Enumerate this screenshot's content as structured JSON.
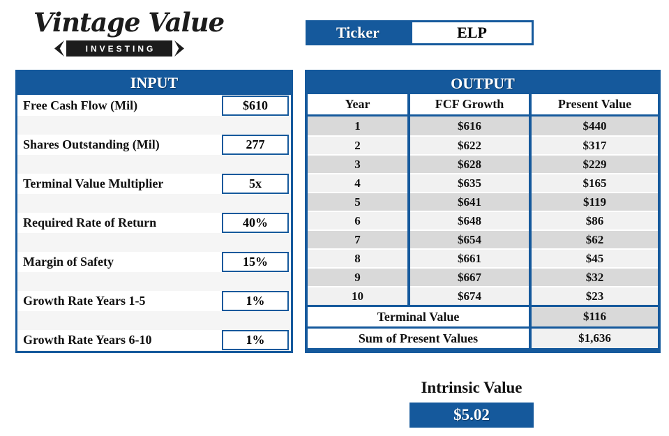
{
  "brand": {
    "name": "Vintage Value",
    "tagline": "INVESTING"
  },
  "ticker": {
    "label": "Ticker",
    "value": "ELP"
  },
  "input": {
    "title": "INPUT",
    "fields": [
      {
        "label": "Free Cash Flow (Mil)",
        "value": "$610"
      },
      {
        "label": "Shares Outstanding (Mil)",
        "value": "277"
      },
      {
        "label": "Terminal Value Multiplier",
        "value": "5x"
      },
      {
        "label": "Required Rate of Return",
        "value": "40%"
      },
      {
        "label": "Margin of Safety",
        "value": "15%"
      },
      {
        "label": "Growth Rate Years 1-5",
        "value": "1%"
      },
      {
        "label": "Growth Rate Years 6-10",
        "value": "1%"
      }
    ]
  },
  "output": {
    "title": "OUTPUT",
    "columns": [
      "Year",
      "FCF Growth",
      "Present Value"
    ],
    "rows": [
      {
        "year": "1",
        "fcf": "$616",
        "pv": "$440"
      },
      {
        "year": "2",
        "fcf": "$622",
        "pv": "$317"
      },
      {
        "year": "3",
        "fcf": "$628",
        "pv": "$229"
      },
      {
        "year": "4",
        "fcf": "$635",
        "pv": "$165"
      },
      {
        "year": "5",
        "fcf": "$641",
        "pv": "$119"
      },
      {
        "year": "6",
        "fcf": "$648",
        "pv": "$86"
      },
      {
        "year": "7",
        "fcf": "$654",
        "pv": "$62"
      },
      {
        "year": "8",
        "fcf": "$661",
        "pv": "$45"
      },
      {
        "year": "9",
        "fcf": "$667",
        "pv": "$32"
      },
      {
        "year": "10",
        "fcf": "$674",
        "pv": "$23"
      }
    ],
    "terminal": {
      "label": "Terminal Value",
      "value": "$116"
    },
    "sum": {
      "label": "Sum of Present Values",
      "value": "$1,636"
    }
  },
  "intrinsic": {
    "label": "Intrinsic Value",
    "value": "$5.02"
  },
  "colors": {
    "accent_blue": "#15599C",
    "row_gray": "#D9D9D9",
    "row_light": "#F1F1F1",
    "logo_black": "#1C1C1C"
  }
}
